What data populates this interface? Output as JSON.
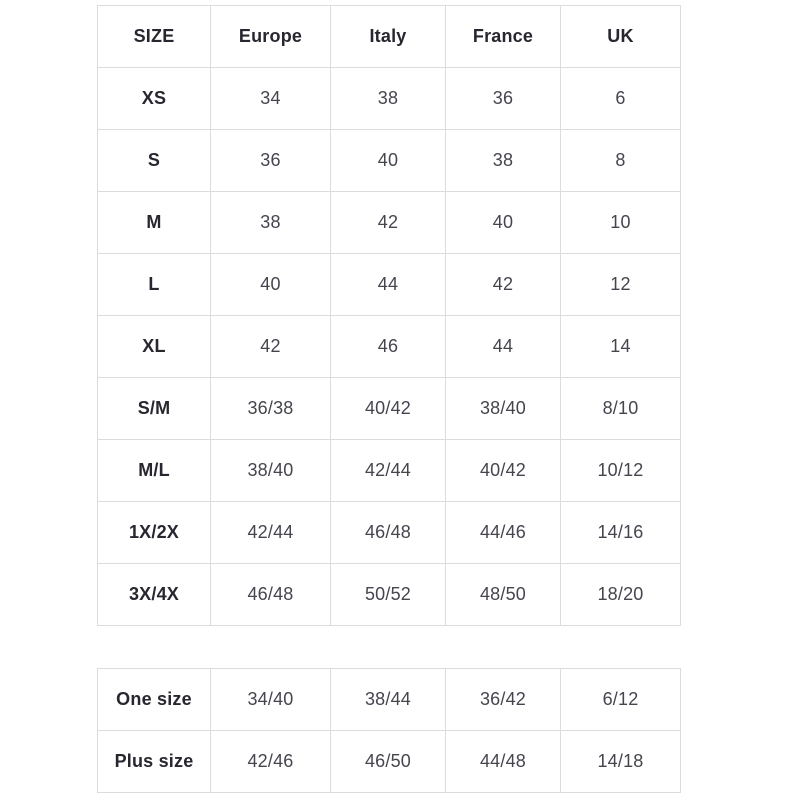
{
  "page": {
    "background": "#ffffff"
  },
  "colors": {
    "border": "#dcdcdc",
    "header_text": "#27272f",
    "value_text": "#45454f"
  },
  "main_table": {
    "headers": [
      "SIZE",
      "Europe",
      "Italy",
      "France",
      "UK"
    ],
    "rows": [
      [
        "XS",
        "34",
        "38",
        "36",
        "6"
      ],
      [
        "S",
        "36",
        "40",
        "38",
        "8"
      ],
      [
        "M",
        "38",
        "42",
        "40",
        "10"
      ],
      [
        "L",
        "40",
        "44",
        "42",
        "12"
      ],
      [
        "XL",
        "42",
        "46",
        "44",
        "14"
      ],
      [
        "S/M",
        "36/38",
        "40/42",
        "38/40",
        "8/10"
      ],
      [
        "M/L",
        "38/40",
        "42/44",
        "40/42",
        "10/12"
      ],
      [
        "1X/2X",
        "42/44",
        "46/48",
        "44/46",
        "14/16"
      ],
      [
        "3X/4X",
        "46/48",
        "50/52",
        "48/50",
        "18/20"
      ]
    ]
  },
  "secondary_table": {
    "rows": [
      [
        "One size",
        "34/40",
        "38/44",
        "36/42",
        "6/12"
      ],
      [
        "Plus size",
        "42/46",
        "46/50",
        "44/48",
        "14/18"
      ]
    ]
  }
}
